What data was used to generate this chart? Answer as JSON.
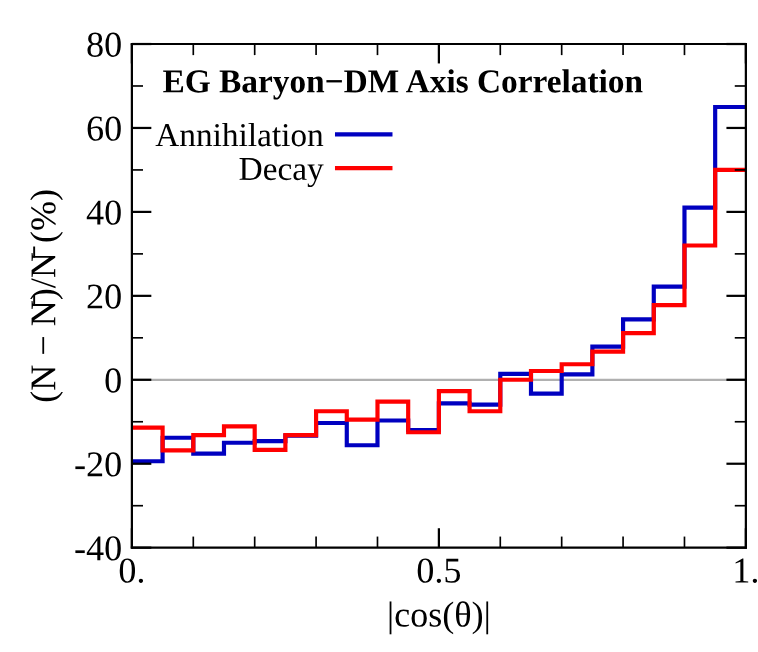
{
  "chart_data": {
    "type": "histogram",
    "title": "EG Baryon−DM Axis Correlation",
    "xlabel": "|cos(θ)|",
    "ylabel": "(N − N̄)/N̄ (%)",
    "bins": [
      0,
      0.05,
      0.1,
      0.15,
      0.2,
      0.25,
      0.3,
      0.35,
      0.4,
      0.45,
      0.5,
      0.55,
      0.6,
      0.65,
      0.7,
      0.75,
      0.8,
      0.85,
      0.9,
      0.95,
      1.0
    ],
    "series": [
      {
        "name": "Annihilation",
        "color": "#0000c0",
        "values": [
          -19.4,
          -13.8,
          -17.6,
          -15,
          -14.6,
          -13.3,
          -10.3,
          -15.6,
          -9.7,
          -12,
          -5.6,
          -5.9,
          1.4,
          -3.3,
          1.3,
          7.9,
          14.4,
          22.2,
          41,
          65
        ]
      },
      {
        "name": "Decay",
        "color": "#ff0000",
        "values": [
          -11.4,
          -16.8,
          -13.2,
          -11.1,
          -16.7,
          -13.2,
          -7.5,
          -9.5,
          -5.2,
          -12.5,
          -2.7,
          -7.5,
          0,
          2.1,
          3.7,
          6.7,
          11.1,
          17.8,
          32,
          50
        ]
      }
    ],
    "xlim": [
      0,
      1
    ],
    "ylim": [
      -40,
      80
    ],
    "xticks": [
      {
        "value": 0,
        "label": "0."
      },
      {
        "value": 0.1,
        "label": null
      },
      {
        "value": 0.2,
        "label": null
      },
      {
        "value": 0.3,
        "label": null
      },
      {
        "value": 0.4,
        "label": null
      },
      {
        "value": 0.5,
        "label": "0.5"
      },
      {
        "value": 0.6,
        "label": null
      },
      {
        "value": 0.7,
        "label": null
      },
      {
        "value": 0.8,
        "label": null
      },
      {
        "value": 0.9,
        "label": null
      },
      {
        "value": 1,
        "label": "1."
      }
    ],
    "yticks": [
      -40,
      {
        "value": -30,
        "label": null
      },
      -20,
      {
        "value": -10,
        "label": null
      },
      0,
      {
        "value": 10,
        "label": null
      },
      20,
      {
        "value": 30,
        "label": null
      },
      40,
      {
        "value": 50,
        "label": null
      },
      60,
      {
        "value": 70,
        "label": null
      },
      80
    ],
    "ref_lines": [
      {
        "axis": "y",
        "value": 0,
        "color": "#b0b0b0"
      }
    ],
    "legend": "top left",
    "grid": false
  }
}
